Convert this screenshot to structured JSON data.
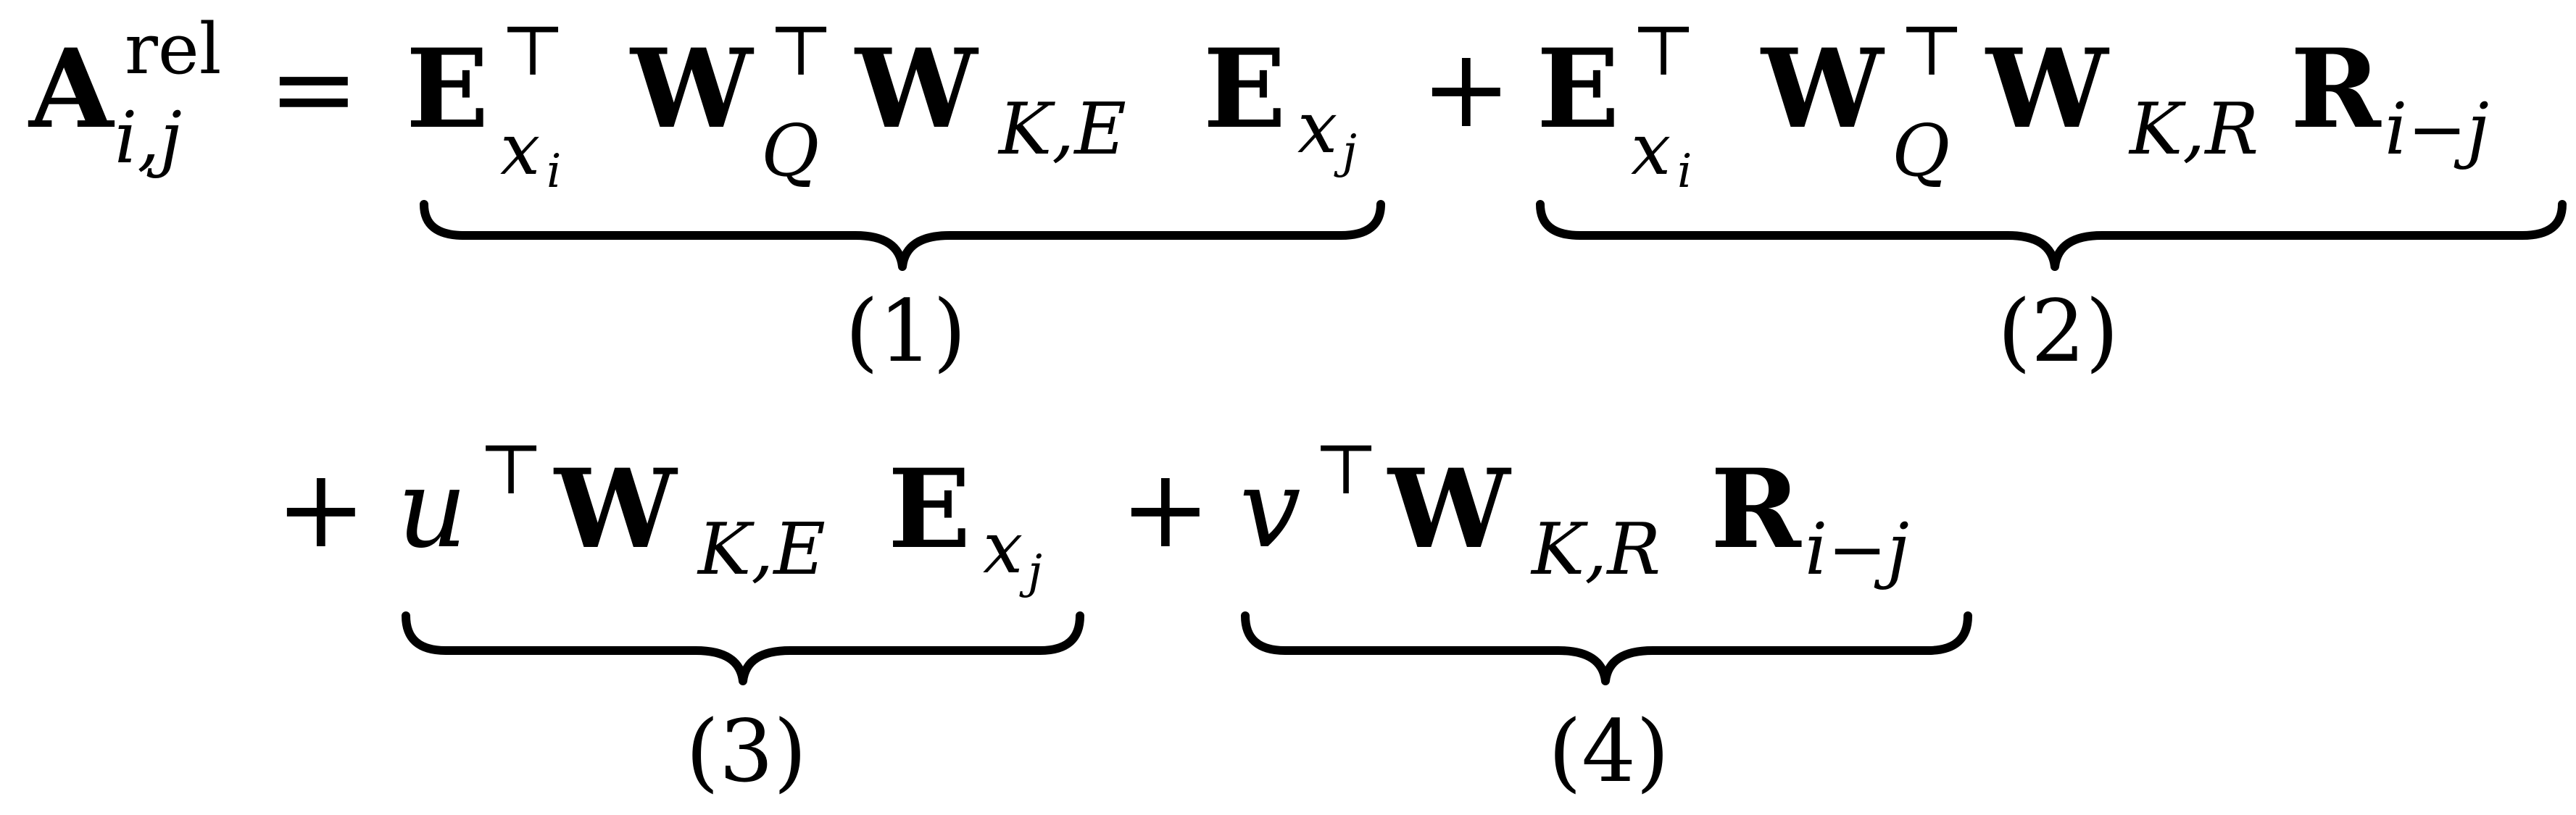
{
  "equation": {
    "lhs": {
      "symbol": "A",
      "superscript": "rel",
      "subscript": "i,j"
    },
    "equals": "=",
    "plus": "+",
    "transpose": "⊤",
    "terms": [
      {
        "label": "(1)",
        "factors": [
          {
            "symbol": "E",
            "sup": "⊤",
            "sub_main": "x",
            "sub_sub": "i"
          },
          {
            "symbol": "W",
            "sup": "⊤",
            "sub": "Q"
          },
          {
            "symbol": "W",
            "sub": "K,E"
          },
          {
            "symbol": "E",
            "sub_main": "x",
            "sub_sub": "j"
          }
        ]
      },
      {
        "label": "(2)",
        "factors": [
          {
            "symbol": "E",
            "sup": "⊤",
            "sub_main": "x",
            "sub_sub": "i"
          },
          {
            "symbol": "W",
            "sup": "⊤",
            "sub": "Q"
          },
          {
            "symbol": "W",
            "sub": "K,R"
          },
          {
            "symbol": "R",
            "sub": "i−j"
          }
        ]
      },
      {
        "label": "(3)",
        "factors": [
          {
            "symbol": "u",
            "sup": "⊤"
          },
          {
            "symbol": "W",
            "sub": "K,E"
          },
          {
            "symbol": "E",
            "sub_main": "x",
            "sub_sub": "j"
          }
        ]
      },
      {
        "label": "(4)",
        "factors": [
          {
            "symbol": "v",
            "sup": "⊤"
          },
          {
            "symbol": "W",
            "sub": "K,R"
          },
          {
            "symbol": "R",
            "sub": "i−j"
          }
        ]
      }
    ]
  }
}
